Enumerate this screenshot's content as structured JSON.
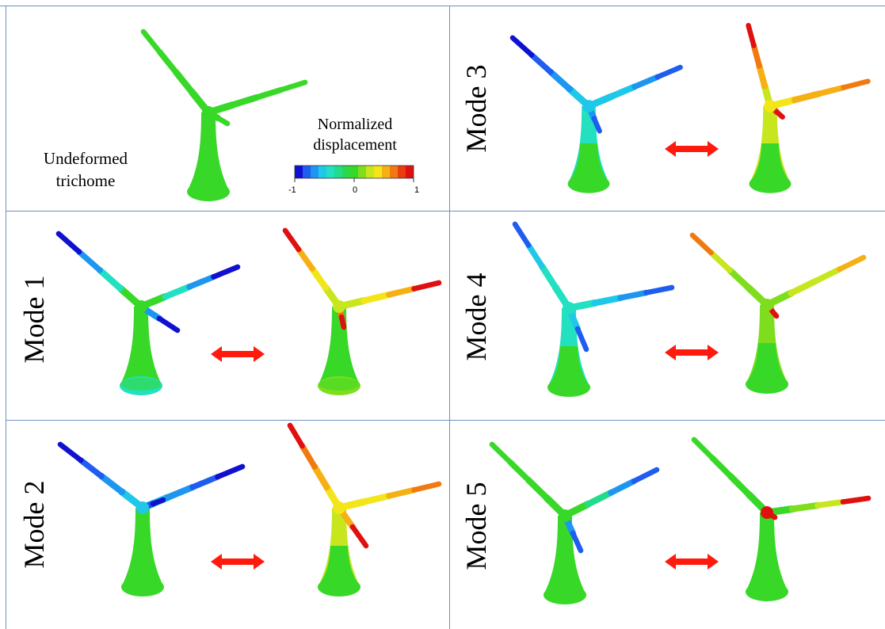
{
  "panels": [
    {
      "id": "undeformed",
      "caption": [
        "Undeformed",
        "trichome"
      ]
    },
    {
      "id": "mode3",
      "label": "Mode 3"
    },
    {
      "id": "mode1",
      "label": "Mode 1"
    },
    {
      "id": "mode4",
      "label": "Mode 4"
    },
    {
      "id": "mode2",
      "label": "Mode 2"
    },
    {
      "id": "mode5",
      "label": "Mode 5"
    }
  ],
  "colorbar": {
    "title": [
      "Normalized",
      "displacement"
    ],
    "ticks": [
      "-1",
      "0",
      "1"
    ],
    "colors": [
      "#1010d0",
      "#1f5cf0",
      "#1d96f0",
      "#1fc8e8",
      "#22e0c0",
      "#22dc8c",
      "#2ad84c",
      "#38d828",
      "#7ede1e",
      "#c8e61e",
      "#f2e61a",
      "#f6b014",
      "#f07a10",
      "#ea3c10",
      "#e01010"
    ]
  },
  "colors": {
    "arrow": "#ff1a0d",
    "grid": "#6f8fc4",
    "base": "#3ada28"
  }
}
